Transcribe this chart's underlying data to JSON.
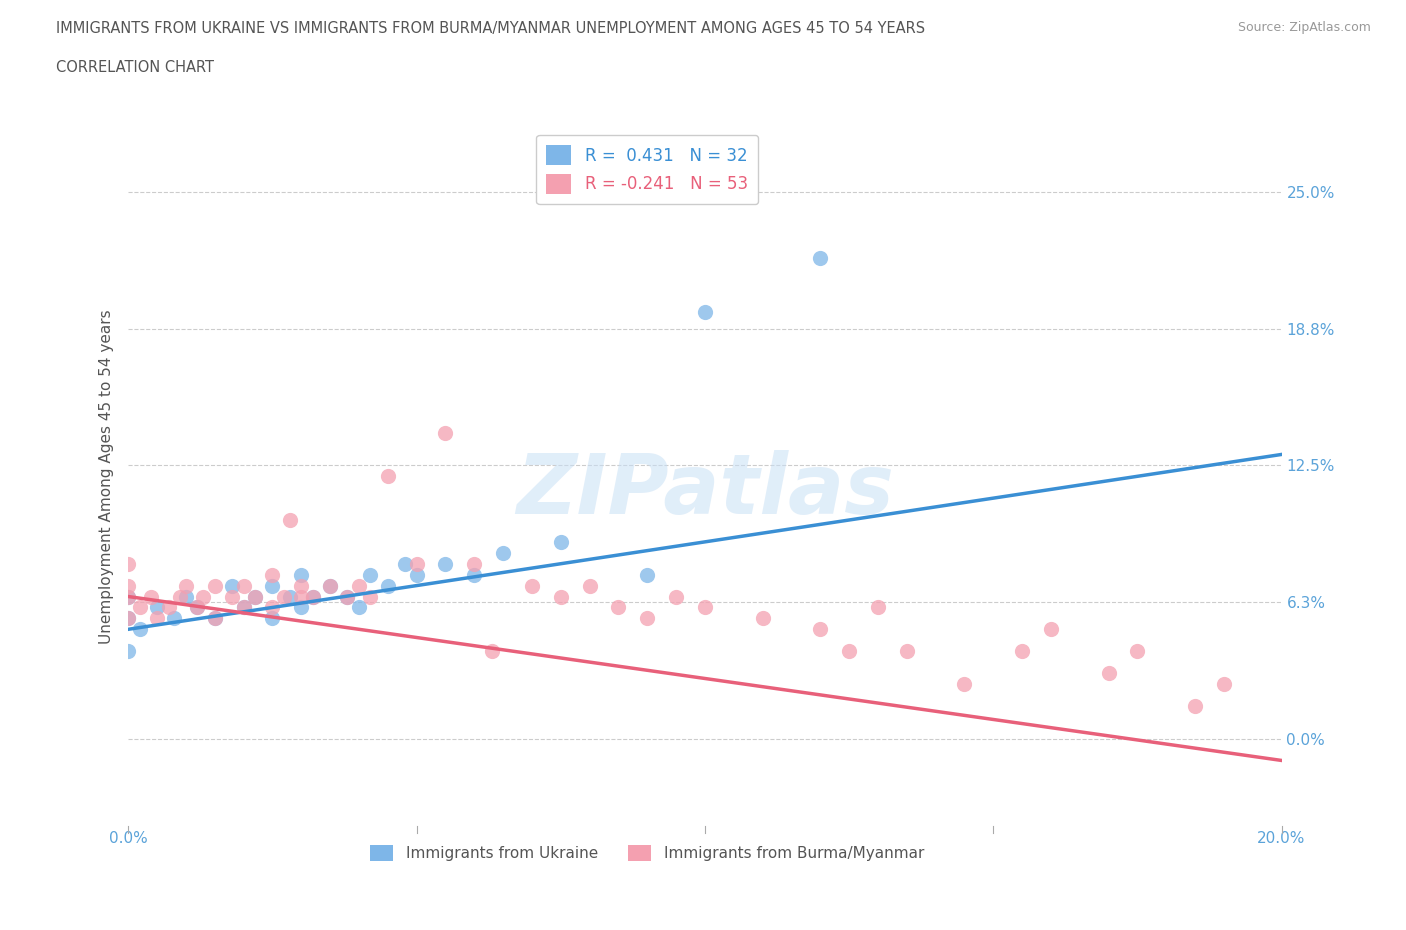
{
  "title_line1": "IMMIGRANTS FROM UKRAINE VS IMMIGRANTS FROM BURMA/MYANMAR UNEMPLOYMENT AMONG AGES 45 TO 54 YEARS",
  "title_line2": "CORRELATION CHART",
  "source": "Source: ZipAtlas.com",
  "ylabel": "Unemployment Among Ages 45 to 54 years",
  "xlim": [
    0.0,
    0.2
  ],
  "ylim": [
    -0.04,
    0.28
  ],
  "yticks": [
    0.0,
    0.0625,
    0.125,
    0.1875,
    0.25
  ],
  "ytick_labels": [
    "0.0%",
    "6.3%",
    "12.5%",
    "18.8%",
    "25.0%"
  ],
  "xticks": [
    0.0,
    0.05,
    0.1,
    0.15,
    0.2
  ],
  "xtick_labels": [
    "0.0%",
    "",
    "",
    "",
    "20.0%"
  ],
  "ukraine_color": "#7EB6E8",
  "burma_color": "#F4A0B0",
  "ukraine_line_color": "#3A8FD4",
  "burma_line_color": "#E8607A",
  "R_ukraine": 0.431,
  "N_ukraine": 32,
  "R_burma": -0.241,
  "N_burma": 53,
  "ukraine_scatter_x": [
    0.0,
    0.0,
    0.0,
    0.002,
    0.005,
    0.008,
    0.01,
    0.012,
    0.015,
    0.018,
    0.02,
    0.022,
    0.025,
    0.025,
    0.028,
    0.03,
    0.03,
    0.032,
    0.035,
    0.038,
    0.04,
    0.042,
    0.045,
    0.048,
    0.05,
    0.055,
    0.06,
    0.065,
    0.075,
    0.09,
    0.1,
    0.12
  ],
  "ukraine_scatter_y": [
    0.04,
    0.055,
    0.065,
    0.05,
    0.06,
    0.055,
    0.065,
    0.06,
    0.055,
    0.07,
    0.06,
    0.065,
    0.055,
    0.07,
    0.065,
    0.06,
    0.075,
    0.065,
    0.07,
    0.065,
    0.06,
    0.075,
    0.07,
    0.08,
    0.075,
    0.08,
    0.075,
    0.085,
    0.09,
    0.075,
    0.195,
    0.22
  ],
  "burma_scatter_x": [
    0.0,
    0.0,
    0.0,
    0.0,
    0.002,
    0.004,
    0.005,
    0.007,
    0.009,
    0.01,
    0.012,
    0.013,
    0.015,
    0.015,
    0.018,
    0.02,
    0.02,
    0.022,
    0.025,
    0.025,
    0.027,
    0.028,
    0.03,
    0.03,
    0.032,
    0.035,
    0.038,
    0.04,
    0.042,
    0.045,
    0.05,
    0.055,
    0.06,
    0.063,
    0.07,
    0.075,
    0.08,
    0.085,
    0.09,
    0.095,
    0.1,
    0.11,
    0.12,
    0.125,
    0.13,
    0.135,
    0.145,
    0.155,
    0.16,
    0.17,
    0.175,
    0.185,
    0.19
  ],
  "burma_scatter_y": [
    0.055,
    0.065,
    0.07,
    0.08,
    0.06,
    0.065,
    0.055,
    0.06,
    0.065,
    0.07,
    0.06,
    0.065,
    0.055,
    0.07,
    0.065,
    0.06,
    0.07,
    0.065,
    0.06,
    0.075,
    0.065,
    0.1,
    0.065,
    0.07,
    0.065,
    0.07,
    0.065,
    0.07,
    0.065,
    0.12,
    0.08,
    0.14,
    0.08,
    0.04,
    0.07,
    0.065,
    0.07,
    0.06,
    0.055,
    0.065,
    0.06,
    0.055,
    0.05,
    0.04,
    0.06,
    0.04,
    0.025,
    0.04,
    0.05,
    0.03,
    0.04,
    0.015,
    0.025
  ],
  "title_color": "#555555",
  "axis_label_color": "#555555",
  "tick_label_color": "#5BA3D9",
  "grid_color": "#CCCCCC",
  "background_color": "#FFFFFF",
  "ukraine_label": "Immigrants from Ukraine",
  "burma_label": "Immigrants from Burma/Myanmar"
}
